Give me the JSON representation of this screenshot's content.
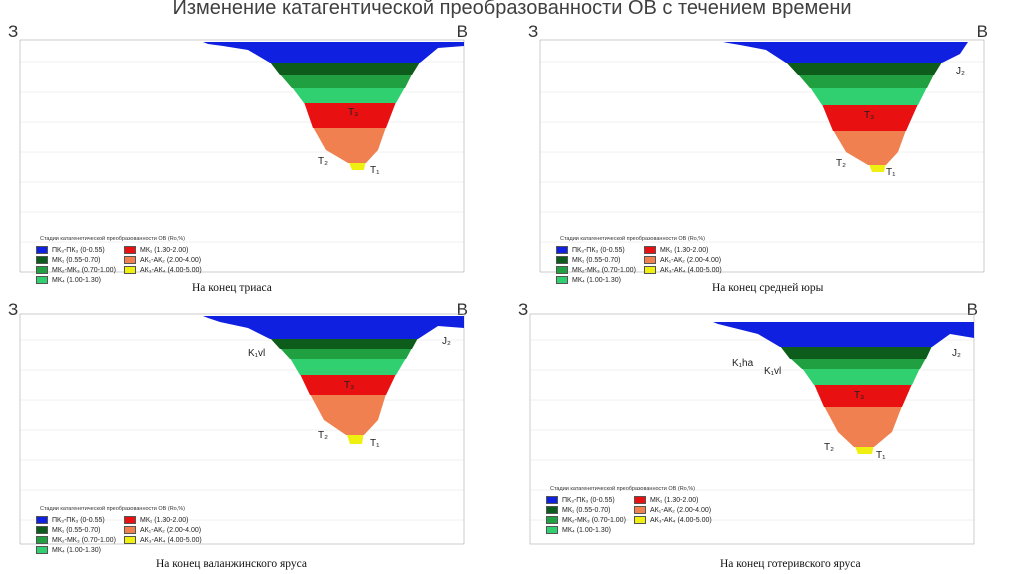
{
  "title": "Изменение катагентической преобразованности ОВ с течением времени",
  "section": {
    "west_label": "З",
    "east_label": "В"
  },
  "legend": {
    "header": "Стадии катагенетической преобразованности ОВ (Ro,%)",
    "items": [
      {
        "label": "ПК₃-ПК₃ (0-0.55)",
        "color": "#1020e0"
      },
      {
        "label": "МК₁ (1.30-2.00)",
        "color": "#e81010"
      },
      {
        "label": "МК₁ (0.55-0.70)",
        "color": "#0e5c1c"
      },
      {
        "label": "АК₁-АК₂ (2.00-4.00)",
        "color": "#f08050"
      },
      {
        "label": "МК₂-МК₃ (0.70-1.00)",
        "color": "#20a040"
      },
      {
        "label": "АК₃-АК₄ (4.00-5.00)",
        "color": "#f0f010"
      },
      {
        "label": "МК₄ (1.00-1.30)",
        "color": "#30d070"
      }
    ]
  },
  "panels": [
    {
      "caption": "На конец триаса",
      "annotations": [
        "T₃",
        "T₂",
        "T₁"
      ]
    },
    {
      "caption": "На конец средней юры",
      "annotations": [
        "J₂",
        "T₃",
        "T₂",
        "T₁"
      ]
    },
    {
      "caption": "На конец валанжинского яруса",
      "annotations": [
        "K₁vl",
        "J₂",
        "T₃",
        "T₂",
        "T₁"
      ]
    },
    {
      "caption": "На конец готеривского яруса",
      "annotations": [
        "K₁ha",
        "K₁vl",
        "J₂",
        "T₃",
        "T₂",
        "T₁"
      ]
    }
  ]
}
